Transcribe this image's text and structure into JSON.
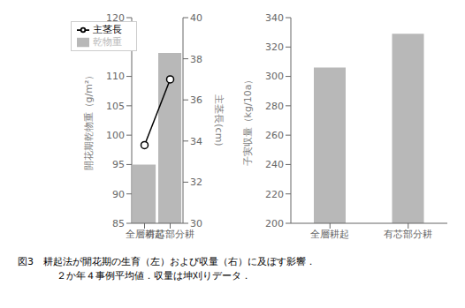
{
  "chart_data": [
    {
      "type": "bar",
      "categories": [
        "全層耕起",
        "有芯部分耕"
      ],
      "series": [
        {
          "name": "乾物重",
          "type": "bar",
          "color": "#b8b8b8",
          "values": [
            95,
            114
          ]
        },
        {
          "name": "主茎長",
          "type": "line",
          "color": "#000000",
          "marker": "circle",
          "axis": "y2",
          "values": [
            33.8,
            37.0
          ]
        }
      ],
      "ylim": [
        85,
        120
      ],
      "yticks": [
        85,
        90,
        95,
        100,
        105,
        110,
        115,
        120
      ],
      "y2lim": [
        30,
        40
      ],
      "y2ticks": [
        30,
        32,
        34,
        36,
        38,
        40
      ],
      "ylabel": "開花期乾物重（g/m²）",
      "y2label": "主茎長(cm)",
      "legend": "upper left"
    },
    {
      "type": "bar",
      "categories": [
        "全層耕起",
        "有芯部分耕"
      ],
      "values": [
        306,
        329
      ],
      "color": "#b8b8b8",
      "ylim": [
        200,
        340
      ],
      "yticks": [
        200,
        220,
        240,
        260,
        280,
        300,
        320,
        340
      ],
      "ylabel": "子実収量（kg/10a）"
    }
  ],
  "annotations": [
    "図3　耕起法が開花期の生育（左）および収量（右）に及ぼす影響．",
    "２か年４事例平均値．収量は坤刈りデータ．"
  ]
}
